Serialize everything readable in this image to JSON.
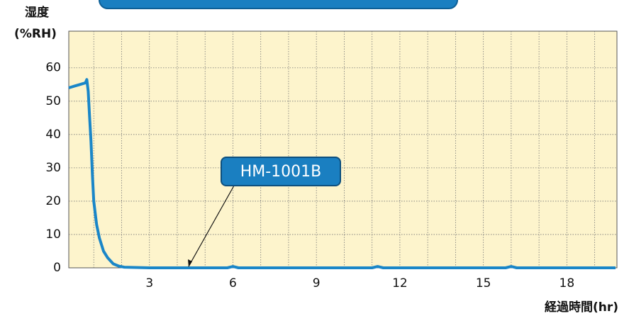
{
  "chart_data": {
    "type": "line",
    "y_label": "湿度",
    "y_unit": "(%RH)",
    "x_label": "経過時間(hr)",
    "annotation": "HM-1001B",
    "series": [
      {
        "name": "HM-1001B",
        "color": "#1a86c8",
        "x": [
          0.1,
          0.3,
          0.5,
          0.7,
          0.75,
          0.8,
          0.85,
          0.9,
          0.95,
          1.0,
          1.1,
          1.2,
          1.35,
          1.5,
          1.7,
          1.9,
          2.1,
          3,
          5.8,
          6.0,
          6.2,
          11.0,
          11.2,
          11.4,
          15.8,
          16.0,
          16.2,
          19.75
        ],
        "values": [
          54,
          54.5,
          55,
          55.5,
          56.5,
          53,
          45,
          38,
          28,
          20,
          13,
          9,
          5,
          3,
          1.2,
          0.5,
          0.2,
          0,
          0,
          0.4,
          0,
          0,
          0.4,
          0,
          0,
          0.4,
          0,
          0
        ]
      }
    ],
    "xlim": [
      0,
      19.8
    ],
    "ylim": [
      0,
      71
    ],
    "xticks": [
      3,
      6,
      9,
      12,
      15,
      18
    ],
    "xminorticks": [
      1,
      2,
      4,
      5,
      7,
      8,
      10,
      11,
      13,
      14,
      16,
      17,
      19
    ],
    "yticks": [
      0,
      10,
      20,
      30,
      40,
      50,
      60
    ],
    "grid": true,
    "background": "#fdf4cc"
  }
}
